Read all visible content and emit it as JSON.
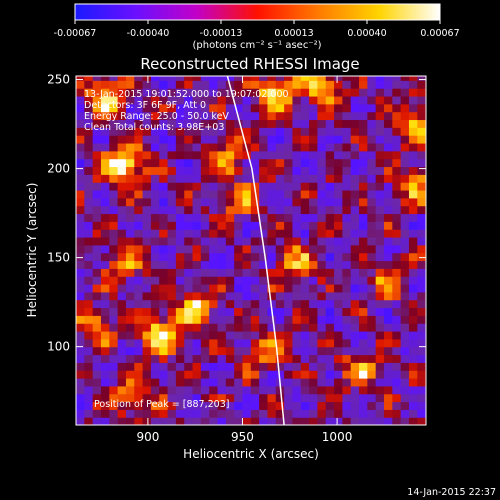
{
  "chart_data": {
    "type": "heatmap",
    "title": "Reconstructed RHESSI Image",
    "xlabel": "Heliocentric X (arcsec)",
    "ylabel": "Heliocentric Y (arcsec)",
    "xlim": [
      862,
      1047
    ],
    "ylim": [
      56,
      252
    ],
    "x_ticks": [
      900,
      950,
      1000
    ],
    "y_ticks": [
      100,
      150,
      200,
      250
    ],
    "colorbar": {
      "range": [
        -0.00067,
        0.00067
      ],
      "ticks": [
        "-0.00067",
        "-0.00040",
        "-0.00013",
        "0.00013",
        "0.00040",
        "0.00067"
      ],
      "units": "(photons cm⁻² s⁻¹ asec⁻²)",
      "colors": [
        "#1a1aff",
        "#6a10ff",
        "#c200c8",
        "#ff1000",
        "#ff7a00",
        "#ffd400",
        "#ffffff"
      ]
    },
    "annotations": [
      "13-Jan-2015 19:01:52.000 to 19:07:02.000",
      "Detectors: 3F 6F 9F, Att 0",
      "Energy Range: 25.0 - 50.0 keV",
      "Clean     Total counts: 3.98E+03"
    ],
    "peak_label": "Position of Peak = [887,203]",
    "peak": [
      887,
      203
    ],
    "limb_curve": [
      [
        942,
        252
      ],
      [
        955,
        200
      ],
      [
        962,
        150
      ],
      [
        968,
        100
      ],
      [
        972,
        56
      ]
    ],
    "hot_spots": [
      {
        "x": 885,
        "y": 200,
        "intensity": 1.0
      },
      {
        "x": 875,
        "y": 240,
        "intensity": 0.7
      },
      {
        "x": 965,
        "y": 240,
        "intensity": 0.75
      },
      {
        "x": 990,
        "y": 245,
        "intensity": 0.65
      },
      {
        "x": 1040,
        "y": 225,
        "intensity": 0.6
      },
      {
        "x": 1040,
        "y": 190,
        "intensity": 0.55
      },
      {
        "x": 905,
        "y": 105,
        "intensity": 0.8
      },
      {
        "x": 925,
        "y": 120,
        "intensity": 0.6
      },
      {
        "x": 870,
        "y": 110,
        "intensity": 0.55
      },
      {
        "x": 885,
        "y": 145,
        "intensity": 0.5
      },
      {
        "x": 975,
        "y": 145,
        "intensity": 0.5
      },
      {
        "x": 1025,
        "y": 135,
        "intensity": 0.45
      },
      {
        "x": 1010,
        "y": 85,
        "intensity": 0.5
      },
      {
        "x": 890,
        "y": 70,
        "intensity": 0.55
      },
      {
        "x": 960,
        "y": 95,
        "intensity": 0.45
      },
      {
        "x": 945,
        "y": 180,
        "intensity": 0.45
      },
      {
        "x": 940,
        "y": 205,
        "intensity": 0.5
      }
    ]
  },
  "timestamp": "14-Jan-2015 22:37"
}
